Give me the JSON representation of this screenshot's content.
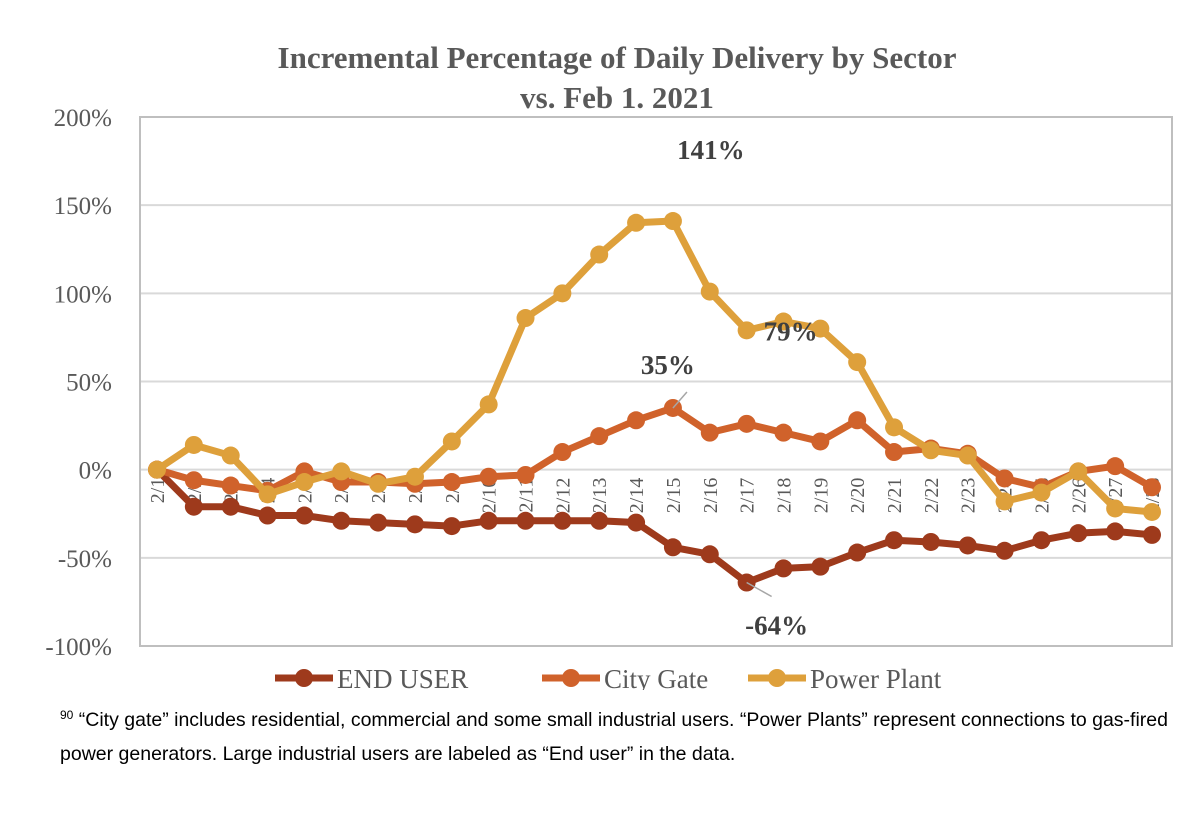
{
  "chart_data": {
    "type": "line",
    "title": "Incremental Percentage of  Daily Delivery by Sector",
    "subtitle": "vs. Feb 1. 2021",
    "xlabel": "",
    "ylabel": "",
    "ylim": [
      -100,
      200
    ],
    "yticks": [
      -100,
      -50,
      0,
      50,
      100,
      150,
      200
    ],
    "ytick_labels": [
      "-100%",
      "-50%",
      "0%",
      "50%",
      "100%",
      "150%",
      "200%"
    ],
    "grid": true,
    "legend_position": "bottom",
    "categories": [
      "2/1",
      "2/2",
      "2/3",
      "2/4",
      "2/5",
      "2/6",
      "2/7",
      "2/8",
      "2/9",
      "2/10",
      "2/11",
      "2/12",
      "2/13",
      "2/14",
      "2/15",
      "2/16",
      "2/17",
      "2/18",
      "2/19",
      "2/20",
      "2/21",
      "2/22",
      "2/23",
      "2/24",
      "2/25",
      "2/26",
      "2/27",
      "2/28"
    ],
    "series": [
      {
        "name": "END USER",
        "color": "#9e3a1c",
        "values": [
          0,
          -21,
          -21,
          -26,
          -26,
          -29,
          -30,
          -31,
          -32,
          -29,
          -29,
          -29,
          -29,
          -30,
          -44,
          -48,
          -64,
          -56,
          -55,
          -47,
          -40,
          -41,
          -43,
          -46,
          -40,
          -36,
          -35,
          -37
        ]
      },
      {
        "name": "City Gate",
        "color": "#d0622b",
        "values": [
          0,
          -6,
          -9,
          -12,
          -1,
          -7,
          -7,
          -8,
          -7,
          -4,
          -3,
          10,
          19,
          28,
          35,
          21,
          26,
          21,
          16,
          28,
          10,
          12,
          9,
          -5,
          -10,
          -1,
          2,
          -10
        ]
      },
      {
        "name": "Power Plant",
        "color": "#dea03b",
        "values": [
          0,
          14,
          8,
          -14,
          -7,
          -1,
          -8,
          -4,
          16,
          37,
          86,
          100,
          122,
          140,
          141,
          101,
          79,
          84,
          80,
          61,
          24,
          11,
          8,
          -18,
          -13,
          -1,
          -22,
          -24
        ]
      }
    ],
    "annotations": [
      {
        "text": "141%",
        "series": "Power Plant",
        "category": "2/15",
        "value": 141
      },
      {
        "text": "79%",
        "series": "Power Plant",
        "category": "2/17",
        "value": 79
      },
      {
        "text": "35%",
        "series": "City Gate",
        "category": "2/15",
        "value": 35
      },
      {
        "text": "-64%",
        "series": "END USER",
        "category": "2/17",
        "value": -64
      }
    ]
  },
  "footnote": {
    "number": "90",
    "text": " “City gate” includes residential, commercial and some small industrial users. “Power Plants” represent connections to gas-fired power generators. Large industrial users are labeled as “End user” in the data."
  }
}
